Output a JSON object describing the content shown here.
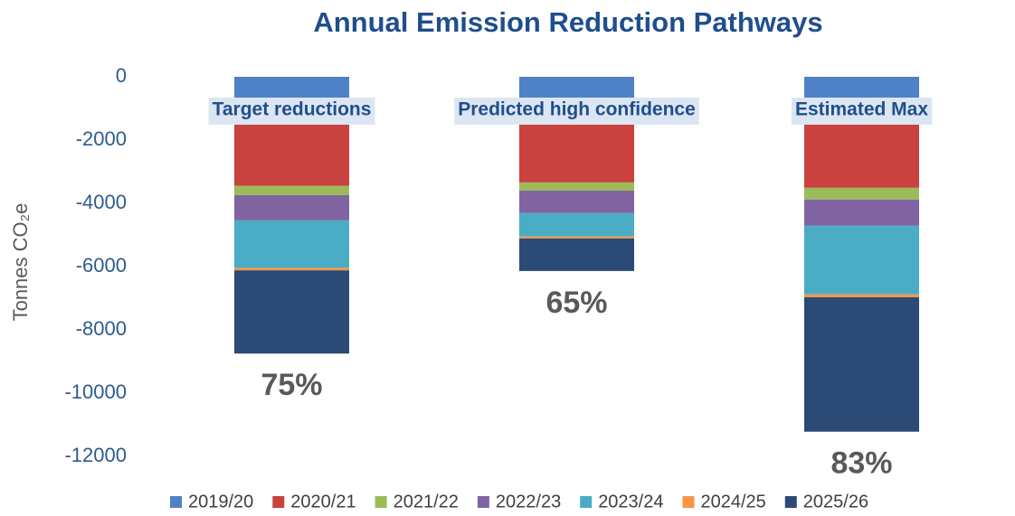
{
  "chart_data": {
    "type": "stacked_bar",
    "title": "Annual Emission Reduction Pathways",
    "ylabel": "Tonnes CO₂e",
    "categories": [
      "Target reductions",
      "Predicted high confidence",
      "Estimated Max"
    ],
    "annotations": [
      "75%",
      "65%",
      "83%"
    ],
    "series": [
      {
        "name": "2019/20",
        "color": "#4f81c7",
        "values": [
          -1400,
          -1400,
          -1400
        ]
      },
      {
        "name": "2020/21",
        "color": "#c9423f",
        "values": [
          -2050,
          -1940,
          -2110
        ]
      },
      {
        "name": "2021/22",
        "color": "#9bbb59",
        "values": [
          -290,
          -260,
          -370
        ]
      },
      {
        "name": "2022/23",
        "color": "#8064a2",
        "values": [
          -800,
          -710,
          -830
        ]
      },
      {
        "name": "2023/24",
        "color": "#4bacc6",
        "values": [
          -1500,
          -740,
          -2170
        ]
      },
      {
        "name": "2024/25",
        "color": "#f79646",
        "values": [
          -80,
          -60,
          -90
        ]
      },
      {
        "name": "2025/26",
        "color": "#2b4a75",
        "values": [
          -2630,
          -1030,
          -4250
        ]
      }
    ],
    "ylim": [
      -12000,
      0
    ],
    "yticks": [
      0,
      -2000,
      -4000,
      -6000,
      -8000,
      -10000,
      -12000
    ],
    "legend": "bottom"
  }
}
